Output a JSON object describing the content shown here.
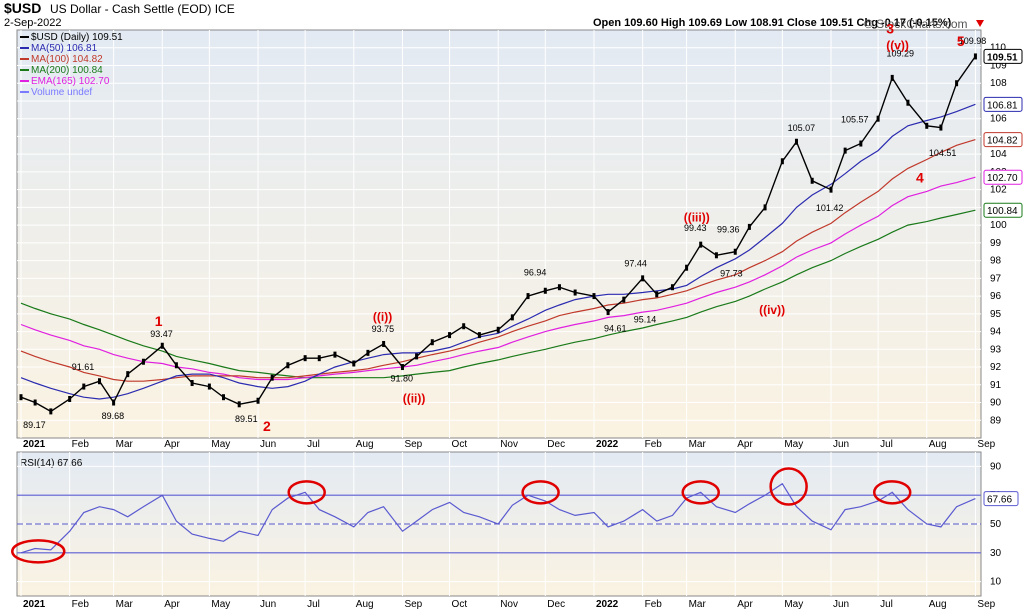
{
  "header": {
    "title": "$USD",
    "subtitle": "US Dollar - Cash Settle (EOD)  ICE",
    "date": "2-Sep-2022",
    "ohlc": "Open 109.60  High 109.69  Low 108.91  Close 109.51  Chg -0.17 (-0.15%)",
    "watermark": "© StockCharts.com"
  },
  "legend": [
    {
      "label": "$USD (Daily) 109.51",
      "color": "#000000"
    },
    {
      "label": "MA(50) 106.81",
      "color": "#2b2bb0"
    },
    {
      "label": "MA(100) 104.82",
      "color": "#c0392b"
    },
    {
      "label": "MA(200) 100.84",
      "color": "#1a7a1a"
    },
    {
      "label": "EMA(165) 102.70",
      "color": "#e020e0"
    },
    {
      "label": "Volume undef",
      "color": "#7a7aff"
    }
  ],
  "colors": {
    "price": "#000000",
    "ma50": "#2b2bb0",
    "ma100": "#c0392b",
    "ma200": "#1a7a1a",
    "ema165": "#e020e0",
    "rsi": "#5a5ad0",
    "wave": "#e00000",
    "bg_top": "#e3eaf3",
    "bg_bottom": "#fbf3e2"
  },
  "chart_data": [
    {
      "type": "line",
      "title": "$USD (Daily) 109.51",
      "y_ticks": [
        89,
        90,
        91,
        92,
        93,
        94,
        95,
        96,
        97,
        98,
        99,
        100,
        101,
        102,
        103,
        104,
        105,
        106,
        107,
        108,
        109,
        110
      ],
      "ylim": [
        88,
        111
      ],
      "x_ticks": [
        "2021",
        "Feb",
        "Mar",
        "Apr",
        "May",
        "Jun",
        "Jul",
        "Aug",
        "Sep",
        "Oct",
        "Nov",
        "Dec",
        "2022",
        "Feb",
        "Mar",
        "Apr",
        "May",
        "Jun",
        "Jul",
        "Aug",
        "Sep"
      ],
      "x": [
        "2021-01-01",
        "2021-01-10",
        "2021-01-20",
        "2021-02-01",
        "2021-02-10",
        "2021-02-20",
        "2021-03-01",
        "2021-03-10",
        "2021-03-20",
        "2021-04-01",
        "2021-04-10",
        "2021-04-20",
        "2021-05-01",
        "2021-05-10",
        "2021-05-20",
        "2021-06-01",
        "2021-06-10",
        "2021-06-20",
        "2021-07-01",
        "2021-07-10",
        "2021-07-20",
        "2021-08-01",
        "2021-08-10",
        "2021-08-20",
        "2021-09-01",
        "2021-09-10",
        "2021-09-20",
        "2021-10-01",
        "2021-10-10",
        "2021-10-20",
        "2021-11-01",
        "2021-11-10",
        "2021-11-20",
        "2021-12-01",
        "2021-12-10",
        "2021-12-20",
        "2022-01-01",
        "2022-01-10",
        "2022-01-20",
        "2022-02-01",
        "2022-02-10",
        "2022-02-20",
        "2022-03-01",
        "2022-03-10",
        "2022-03-20",
        "2022-04-01",
        "2022-04-10",
        "2022-04-20",
        "2022-05-01",
        "2022-05-10",
        "2022-05-20",
        "2022-06-01",
        "2022-06-10",
        "2022-06-20",
        "2022-07-01",
        "2022-07-10",
        "2022-07-20",
        "2022-08-01",
        "2022-08-10",
        "2022-08-20",
        "2022-09-01"
      ],
      "series": [
        {
          "name": "$USD (Daily) 109.51",
          "values": [
            90.3,
            90.0,
            89.5,
            90.2,
            90.9,
            91.2,
            90.0,
            91.6,
            92.3,
            93.2,
            92.1,
            91.1,
            90.9,
            90.3,
            89.9,
            90.1,
            91.4,
            92.1,
            92.5,
            92.5,
            92.7,
            92.2,
            92.8,
            93.3,
            92.0,
            92.6,
            93.4,
            93.8,
            94.3,
            93.8,
            94.1,
            94.8,
            96.0,
            96.3,
            96.5,
            96.2,
            96.0,
            95.1,
            95.8,
            97.0,
            96.1,
            96.5,
            97.6,
            98.9,
            98.3,
            98.5,
            99.9,
            101.0,
            103.6,
            104.7,
            102.5,
            102.0,
            104.2,
            104.6,
            106.0,
            108.3,
            106.9,
            105.6,
            105.5,
            108.0,
            109.51
          ]
        },
        {
          "name": "MA(50) 106.81",
          "values": [
            91.4,
            91.1,
            90.8,
            90.5,
            90.3,
            90.2,
            90.3,
            90.5,
            90.8,
            91.2,
            91.5,
            91.6,
            91.6,
            91.4,
            91.1,
            90.9,
            90.8,
            90.9,
            91.2,
            91.6,
            92.0,
            92.3,
            92.5,
            92.7,
            92.8,
            92.8,
            92.9,
            93.1,
            93.4,
            93.7,
            93.9,
            94.3,
            94.7,
            95.2,
            95.5,
            95.8,
            96.0,
            96.1,
            96.1,
            96.2,
            96.3,
            96.4,
            96.6,
            97.1,
            97.6,
            98.1,
            98.6,
            99.3,
            100.1,
            101.0,
            101.7,
            102.3,
            102.9,
            103.6,
            104.2,
            105.0,
            105.6,
            105.9,
            106.1,
            106.4,
            106.81
          ]
        },
        {
          "name": "MA(100) 104.82",
          "values": [
            92.9,
            92.6,
            92.3,
            92.0,
            91.7,
            91.5,
            91.3,
            91.2,
            91.2,
            91.3,
            91.4,
            91.5,
            91.5,
            91.5,
            91.5,
            91.4,
            91.4,
            91.4,
            91.5,
            91.6,
            91.7,
            91.8,
            91.9,
            92.1,
            92.3,
            92.5,
            92.7,
            92.9,
            93.1,
            93.4,
            93.7,
            94.0,
            94.3,
            94.6,
            94.9,
            95.1,
            95.3,
            95.5,
            95.6,
            95.8,
            95.9,
            96.1,
            96.3,
            96.6,
            96.9,
            97.2,
            97.6,
            98.0,
            98.5,
            99.1,
            99.6,
            100.1,
            100.7,
            101.3,
            101.9,
            102.6,
            103.2,
            103.7,
            104.1,
            104.5,
            104.82
          ]
        },
        {
          "name": "MA(200) 100.84",
          "values": [
            95.6,
            95.3,
            95.0,
            94.7,
            94.4,
            94.1,
            93.8,
            93.5,
            93.2,
            92.9,
            92.6,
            92.4,
            92.2,
            92.0,
            91.8,
            91.7,
            91.6,
            91.5,
            91.4,
            91.4,
            91.4,
            91.4,
            91.4,
            91.4,
            91.5,
            91.6,
            91.7,
            91.8,
            92.0,
            92.2,
            92.4,
            92.6,
            92.8,
            93.0,
            93.2,
            93.4,
            93.6,
            93.8,
            94.0,
            94.2,
            94.4,
            94.6,
            94.8,
            95.1,
            95.4,
            95.7,
            96.0,
            96.4,
            96.8,
            97.2,
            97.6,
            98.0,
            98.4,
            98.8,
            99.2,
            99.6,
            100.0,
            100.2,
            100.4,
            100.6,
            100.84
          ]
        },
        {
          "name": "EMA(165) 102.70",
          "values": [
            94.4,
            94.1,
            93.8,
            93.5,
            93.2,
            93.0,
            92.7,
            92.5,
            92.3,
            92.2,
            92.0,
            91.9,
            91.7,
            91.6,
            91.4,
            91.3,
            91.3,
            91.3,
            91.4,
            91.5,
            91.6,
            91.7,
            91.8,
            91.9,
            92.0,
            92.1,
            92.3,
            92.5,
            92.7,
            92.9,
            93.1,
            93.4,
            93.7,
            94.0,
            94.2,
            94.4,
            94.6,
            94.8,
            94.9,
            95.1,
            95.2,
            95.4,
            95.6,
            95.9,
            96.2,
            96.5,
            96.8,
            97.2,
            97.7,
            98.2,
            98.6,
            99.0,
            99.5,
            100.0,
            100.5,
            101.1,
            101.6,
            101.9,
            102.2,
            102.4,
            102.7
          ]
        }
      ],
      "data_labels": [
        {
          "text": "89.17",
          "x": "2021-01-10",
          "y": 89.17
        },
        {
          "text": "91.61",
          "x": "2021-02-10",
          "y": 91.61
        },
        {
          "text": "89.68",
          "x": "2021-03-01",
          "y": 89.68
        },
        {
          "text": "93.47",
          "x": "2021-04-01",
          "y": 93.47
        },
        {
          "text": "89.51",
          "x": "2021-05-25",
          "y": 89.51
        },
        {
          "text": "93.75",
          "x": "2021-08-20",
          "y": 93.75
        },
        {
          "text": "91.80",
          "x": "2021-09-01",
          "y": 91.8
        },
        {
          "text": "96.94",
          "x": "2021-11-25",
          "y": 96.94
        },
        {
          "text": "94.61",
          "x": "2022-01-15",
          "y": 94.61
        },
        {
          "text": "97.44",
          "x": "2022-01-28",
          "y": 97.44
        },
        {
          "text": "95.14",
          "x": "2022-02-03",
          "y": 95.14
        },
        {
          "text": "99.43",
          "x": "2022-03-07",
          "y": 99.43
        },
        {
          "text": "99.36",
          "x": "2022-03-28",
          "y": 99.36
        },
        {
          "text": "97.73",
          "x": "2022-03-30",
          "y": 97.73
        },
        {
          "text": "105.07",
          "x": "2022-05-12",
          "y": 105.07
        },
        {
          "text": "101.42",
          "x": "2022-05-30",
          "y": 101.42
        },
        {
          "text": "105.57",
          "x": "2022-06-15",
          "y": 105.57
        },
        {
          "text": "109.29",
          "x": "2022-07-14",
          "y": 109.29
        },
        {
          "text": "104.51",
          "x": "2022-08-10",
          "y": 104.51
        },
        {
          "text": "109.98",
          "x": "2022-08-29",
          "y": 109.98
        }
      ],
      "wave_labels": [
        {
          "text": "1",
          "x": "2021-03-31",
          "y": 94.3
        },
        {
          "text": "2",
          "x": "2021-06-08",
          "y": 88.4
        },
        {
          "text": "((i))",
          "x": "2021-08-17",
          "y": 94.6
        },
        {
          "text": "((ii))",
          "x": "2021-09-05",
          "y": 90.0
        },
        {
          "text": "((iii))",
          "x": "2022-03-03",
          "y": 100.2
        },
        {
          "text": "((iv))",
          "x": "2022-04-20",
          "y": 95.0
        },
        {
          "text": "3",
          "x": "2022-07-10",
          "y": 110.8
        },
        {
          "text": "((v))",
          "x": "2022-07-10",
          "y": 109.9
        },
        {
          "text": "4",
          "x": "2022-07-29",
          "y": 102.4
        },
        {
          "text": "5",
          "x": "2022-08-24",
          "y": 110.1
        }
      ],
      "right_labels": [
        {
          "text": "109.51",
          "y": 109.51,
          "color": "#000000",
          "bold": true
        },
        {
          "text": "106.81",
          "y": 106.81,
          "color": "#2b2bb0"
        },
        {
          "text": "104.82",
          "y": 104.82,
          "color": "#c0392b"
        },
        {
          "text": "102.70",
          "y": 102.7,
          "color": "#e020e0"
        },
        {
          "text": "100.84",
          "y": 100.84,
          "color": "#1a7a1a"
        }
      ]
    },
    {
      "type": "line",
      "title": "RSI(14) 67.66",
      "y_ticks": [
        10,
        30,
        50,
        70,
        90
      ],
      "ylim": [
        0,
        100
      ],
      "overbought": 70,
      "oversold": 30,
      "midline": 50,
      "x": [
        "2021-01-01",
        "2021-01-10",
        "2021-01-20",
        "2021-02-01",
        "2021-02-10",
        "2021-02-20",
        "2021-03-01",
        "2021-03-10",
        "2021-03-20",
        "2021-04-01",
        "2021-04-10",
        "2021-04-20",
        "2021-05-01",
        "2021-05-10",
        "2021-05-20",
        "2021-06-01",
        "2021-06-10",
        "2021-06-20",
        "2021-07-01",
        "2021-07-10",
        "2021-07-20",
        "2021-08-01",
        "2021-08-10",
        "2021-08-20",
        "2021-09-01",
        "2021-09-10",
        "2021-09-20",
        "2021-10-01",
        "2021-10-10",
        "2021-10-20",
        "2021-11-01",
        "2021-11-10",
        "2021-11-20",
        "2021-12-01",
        "2021-12-10",
        "2021-12-20",
        "2022-01-01",
        "2022-01-10",
        "2022-01-20",
        "2022-02-01",
        "2022-02-10",
        "2022-02-20",
        "2022-03-01",
        "2022-03-10",
        "2022-03-20",
        "2022-04-01",
        "2022-04-10",
        "2022-04-20",
        "2022-05-01",
        "2022-05-10",
        "2022-05-20",
        "2022-06-01",
        "2022-06-10",
        "2022-06-20",
        "2022-07-01",
        "2022-07-10",
        "2022-07-20",
        "2022-08-01",
        "2022-08-10",
        "2022-08-20",
        "2022-09-01"
      ],
      "series": [
        {
          "name": "RSI(14) 67.66",
          "values": [
            30,
            33,
            32,
            45,
            58,
            62,
            60,
            55,
            62,
            70,
            52,
            43,
            40,
            38,
            45,
            42,
            60,
            68,
            72,
            60,
            55,
            48,
            58,
            62,
            45,
            52,
            60,
            65,
            58,
            55,
            50,
            63,
            70,
            66,
            60,
            56,
            58,
            48,
            52,
            60,
            52,
            56,
            68,
            72,
            62,
            58,
            64,
            70,
            78,
            62,
            52,
            46,
            60,
            62,
            66,
            72,
            60,
            50,
            48,
            62,
            67.66
          ]
        }
      ],
      "highlight_circles_x": [
        "2021-01-12",
        "2021-07-02",
        "2021-11-28",
        "2022-03-10",
        "2022-05-05",
        "2022-07-10"
      ]
    }
  ]
}
